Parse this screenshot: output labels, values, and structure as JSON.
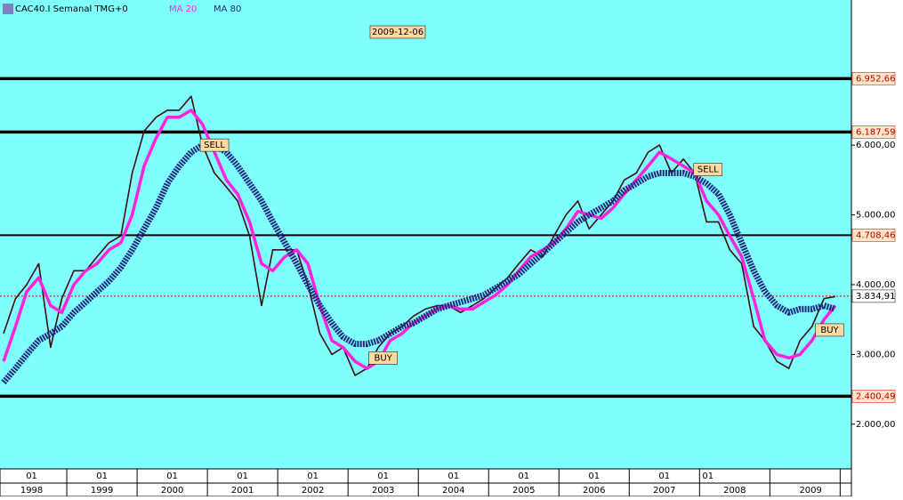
{
  "header": {
    "symbol": "CAC40.I Semanal TMG+0",
    "indicators": [
      "MA 20",
      "MA 80"
    ],
    "date": "2009-12-06"
  },
  "chart_data": {
    "type": "line",
    "x": [
      1998.1,
      1998.27,
      1998.43,
      1998.6,
      1998.77,
      1998.93,
      1999.1,
      1999.27,
      1999.43,
      1999.6,
      1999.77,
      1999.93,
      2000.1,
      2000.27,
      2000.43,
      2000.6,
      2000.77,
      2000.93,
      2001.1,
      2001.27,
      2001.43,
      2001.6,
      2001.77,
      2001.93,
      2002.1,
      2002.27,
      2002.43,
      2002.6,
      2002.77,
      2002.93,
      2003.1,
      2003.27,
      2003.43,
      2003.6,
      2003.77,
      2003.93,
      2004.1,
      2004.27,
      2004.43,
      2004.6,
      2004.77,
      2004.93,
      2005.1,
      2005.27,
      2005.43,
      2005.6,
      2005.77,
      2005.93,
      2006.1,
      2006.27,
      2006.43,
      2006.6,
      2006.77,
      2006.93,
      2007.1,
      2007.27,
      2007.43,
      2007.6,
      2007.77,
      2007.93,
      2008.1,
      2008.27,
      2008.43,
      2008.6,
      2008.77,
      2008.93,
      2009.1,
      2009.27,
      2009.43,
      2009.6,
      2009.77,
      2009.93
    ],
    "series": [
      {
        "name": "CAC40.I",
        "color": "#3a0f0f",
        "values": [
          3300,
          3800,
          4000,
          4300,
          3100,
          3800,
          4200,
          4200,
          4400,
          4600,
          4700,
          5600,
          6200,
          6400,
          6500,
          6500,
          6700,
          6000,
          5600,
          5400,
          5200,
          4700,
          3700,
          4500,
          4500,
          4500,
          4000,
          3300,
          3000,
          3100,
          2700,
          2800,
          3100,
          3300,
          3400,
          3550,
          3650,
          3700,
          3700,
          3600,
          3700,
          3800,
          3950,
          4100,
          4300,
          4500,
          4400,
          4700,
          5000,
          5200,
          4800,
          5000,
          5200,
          5500,
          5600,
          5900,
          6000,
          5600,
          5800,
          5600,
          4900,
          4900,
          4500,
          4300,
          3400,
          3200,
          2900,
          2800,
          3200,
          3400,
          3800,
          3830
        ]
      },
      {
        "name": "MA 20",
        "color": "#ff22dd",
        "values": [
          2900,
          3400,
          3900,
          4100,
          3700,
          3600,
          4000,
          4200,
          4300,
          4500,
          4600,
          5000,
          5700,
          6100,
          6400,
          6400,
          6500,
          6300,
          5900,
          5500,
          5300,
          4900,
          4300,
          4200,
          4400,
          4500,
          4300,
          3700,
          3200,
          3100,
          2900,
          2800,
          2900,
          3200,
          3300,
          3450,
          3550,
          3650,
          3700,
          3650,
          3650,
          3750,
          3850,
          4000,
          4200,
          4400,
          4500,
          4600,
          4800,
          5050,
          5000,
          4950,
          5100,
          5300,
          5500,
          5700,
          5900,
          5800,
          5700,
          5600,
          5200,
          5000,
          4700,
          4400,
          3800,
          3200,
          3000,
          2950,
          3000,
          3200,
          3500,
          3700
        ]
      },
      {
        "name": "MA 80",
        "color": "#1f2a80",
        "values": [
          2600,
          2800,
          3000,
          3200,
          3300,
          3400,
          3600,
          3750,
          3900,
          4050,
          4250,
          4500,
          4800,
          5100,
          5450,
          5700,
          5900,
          6000,
          6000,
          5900,
          5700,
          5450,
          5200,
          4900,
          4600,
          4300,
          4000,
          3700,
          3450,
          3250,
          3150,
          3150,
          3200,
          3300,
          3400,
          3450,
          3550,
          3650,
          3700,
          3750,
          3800,
          3850,
          3950,
          4050,
          4150,
          4300,
          4450,
          4600,
          4750,
          4900,
          5000,
          5100,
          5200,
          5350,
          5450,
          5550,
          5600,
          5600,
          5600,
          5550,
          5450,
          5300,
          5000,
          4600,
          4200,
          3900,
          3700,
          3600,
          3650,
          3650,
          3700,
          3650
        ]
      }
    ],
    "xlim": [
      1998.05,
      2010.16
    ],
    "ylim": [
      1360,
      8080
    ],
    "yticks": [
      {
        "value": 2000,
        "label": "2.000,00"
      },
      {
        "value": 3000,
        "label": "3.000,00"
      },
      {
        "value": 4000,
        "label": "4.000,00"
      },
      {
        "value": 5000,
        "label": "5.000,00"
      },
      {
        "value": 6000,
        "label": "6.000,00"
      }
    ],
    "month_ticks": [
      {
        "value": 1998.5,
        "label": "01"
      },
      {
        "value": 1999.5,
        "label": "01"
      },
      {
        "value": 2000.5,
        "label": "01"
      },
      {
        "value": 2001.5,
        "label": "01"
      },
      {
        "value": 2002.5,
        "label": "01"
      },
      {
        "value": 2003.5,
        "label": "01"
      },
      {
        "value": 2004.5,
        "label": "01"
      },
      {
        "value": 2005.5,
        "label": "01"
      },
      {
        "value": 2006.5,
        "label": "01"
      },
      {
        "value": 2007.5,
        "label": "01"
      },
      {
        "value": 2008.12,
        "label": "01"
      }
    ],
    "year_ticks": [
      {
        "value": 1998.5,
        "label": "1998"
      },
      {
        "value": 1999.5,
        "label": "1999"
      },
      {
        "value": 2000.5,
        "label": "2000"
      },
      {
        "value": 2001.5,
        "label": "2001"
      },
      {
        "value": 2002.5,
        "label": "2002"
      },
      {
        "value": 2003.5,
        "label": "2003"
      },
      {
        "value": 2004.5,
        "label": "2004"
      },
      {
        "value": 2005.5,
        "label": "2005"
      },
      {
        "value": 2006.5,
        "label": "2006"
      },
      {
        "value": 2007.5,
        "label": "2007"
      },
      {
        "value": 2008.5,
        "label": "2008"
      },
      {
        "value": 2009.58,
        "label": "2009"
      }
    ],
    "levels": {
      "values": [
        6952.66,
        6187.59,
        4708.46,
        2400.49
      ],
      "value_labels": [
        "6.952,66",
        "6.187,59",
        "4.708,46",
        "2.400,49"
      ]
    },
    "last": {
      "value": 3834.91,
      "label": "3.834,91"
    },
    "annotations": [
      {
        "text": "SELL",
        "x": 2001.1,
        "y": 6000
      },
      {
        "text": "SELL",
        "x": 2008.12,
        "y": 5650
      },
      {
        "text": "BUY",
        "x": 2003.5,
        "y": 2950
      },
      {
        "text": "BUY",
        "x": 2009.85,
        "y": 3350
      }
    ]
  }
}
